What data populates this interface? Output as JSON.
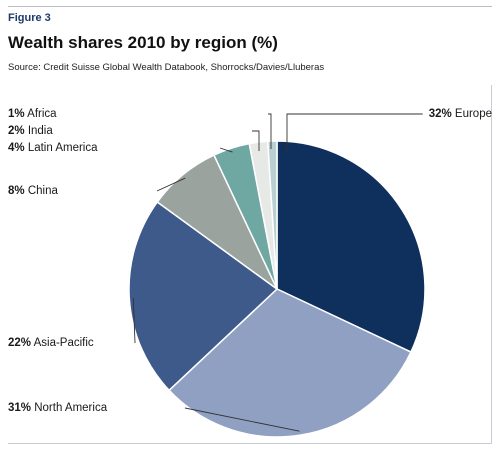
{
  "figure_label": "Figure 3",
  "title": "Wealth shares 2010 by region (%)",
  "source": "Source: Credit Suisse Global Wealth Databook, Shorrocks/Davies/Lluberas",
  "chart_data": {
    "type": "pie",
    "title": "Wealth shares 2010 by region (%)",
    "slices": [
      {
        "label": "Europe",
        "value": 32,
        "pct_text": "32%",
        "color": "#0f2f5c"
      },
      {
        "label": "North America",
        "value": 31,
        "pct_text": "31%",
        "color": "#8fa0c2"
      },
      {
        "label": "Asia-Pacific",
        "value": 22,
        "pct_text": "22%",
        "color": "#3d5a8a"
      },
      {
        "label": "China",
        "value": 8,
        "pct_text": "8%",
        "color": "#9ba39f"
      },
      {
        "label": "Latin America",
        "value": 4,
        "pct_text": "4%",
        "color": "#6fa7a3"
      },
      {
        "label": "India",
        "value": 2,
        "pct_text": "2%",
        "color": "#e6e9e6"
      },
      {
        "label": "Africa",
        "value": 1,
        "pct_text": "1%",
        "color": "#b9cfd0"
      }
    ]
  }
}
